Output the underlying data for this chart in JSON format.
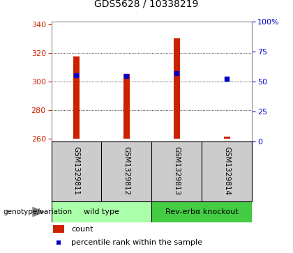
{
  "title": "GDS5628 / 10338219",
  "samples": [
    "GSM1329811",
    "GSM1329812",
    "GSM1329813",
    "GSM1329814"
  ],
  "count_values": [
    317.5,
    305.5,
    330.0,
    261.5
  ],
  "percentile_values": [
    55.5,
    54.5,
    57.0,
    52.5
  ],
  "baseline": 260,
  "ylim_left": [
    258,
    342
  ],
  "ylim_right": [
    0,
    100
  ],
  "yticks_left": [
    260,
    280,
    300,
    320,
    340
  ],
  "yticks_right": [
    0,
    25,
    50,
    75,
    100
  ],
  "yticklabels_right": [
    "0",
    "25",
    "50",
    "75",
    "100%"
  ],
  "bar_color": "#cc2200",
  "point_color": "#0000cc",
  "bar_width": 0.12,
  "groups": [
    {
      "label": "wild type",
      "indices": [
        0,
        1
      ],
      "color": "#aaffaa"
    },
    {
      "label": "Rev-erbα knockout",
      "indices": [
        2,
        3
      ],
      "color": "#44cc44"
    }
  ],
  "genotype_label": "genotype/variation",
  "legend_items": [
    {
      "color": "#cc2200",
      "label": "count"
    },
    {
      "color": "#0000cc",
      "label": "percentile rank within the sample"
    }
  ],
  "background_color": "#ffffff",
  "plot_bg_color": "#ffffff",
  "tick_color_left": "#cc2200",
  "tick_color_right": "#0000cc",
  "sample_area_color": "#cccccc",
  "grid_lines": [
    280,
    300,
    320
  ]
}
